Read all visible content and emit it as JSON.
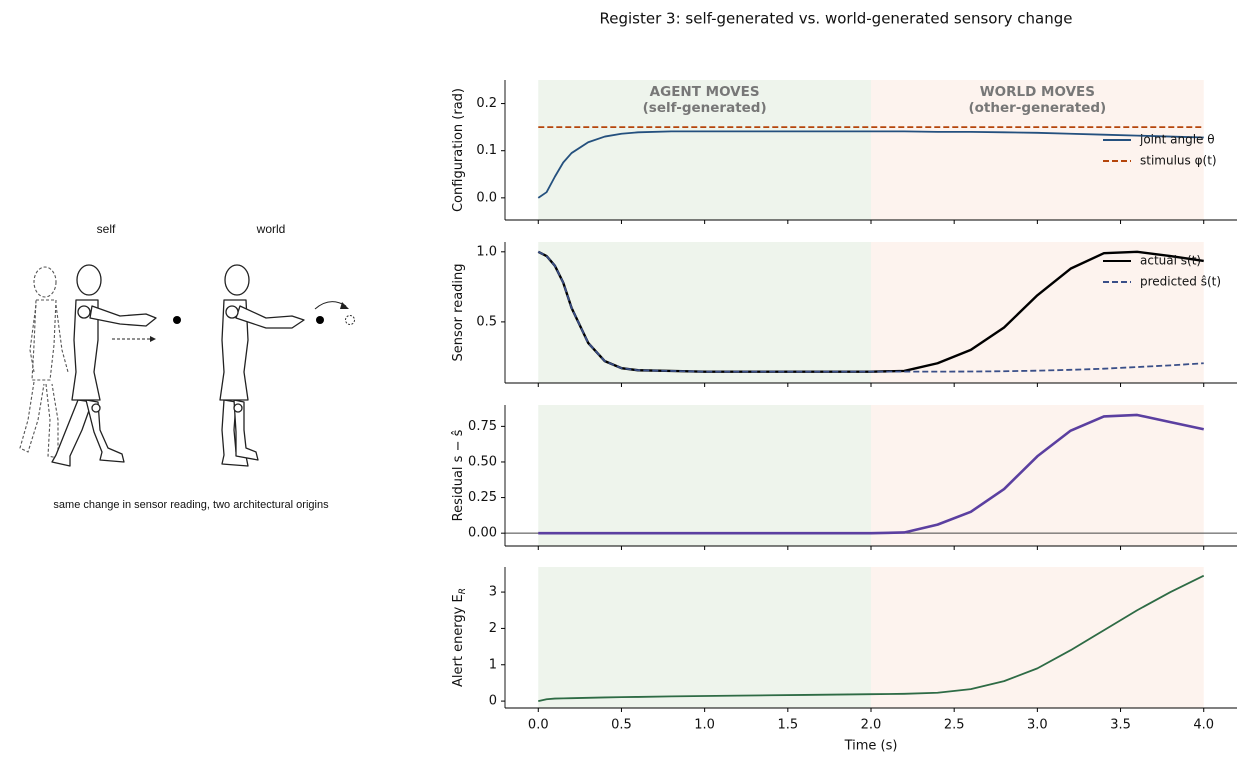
{
  "suptitle": "Register 3: self-generated vs. world-generated sensory change",
  "illustration": {
    "labels": [
      "self",
      "world"
    ],
    "caption": "same change in sensor reading, two architectural origins"
  },
  "chart_data": [
    {
      "type": "line",
      "ylabel": "Configuration (rad)",
      "legend": "center right",
      "x": [
        0,
        0.05,
        0.1,
        0.15,
        0.2,
        0.3,
        0.4,
        0.5,
        0.6,
        0.8,
        1.0,
        1.2,
        1.4,
        1.6,
        1.8,
        2.0,
        2.2,
        2.4,
        2.6,
        2.8,
        3.0,
        3.2,
        3.4,
        3.6,
        3.8,
        4.0
      ],
      "series": [
        {
          "name": "joint angle θ",
          "color": "#24507e",
          "dash": false,
          "values": [
            0,
            0.012,
            0.045,
            0.075,
            0.095,
            0.118,
            0.13,
            0.136,
            0.139,
            0.141,
            0.141,
            0.141,
            0.141,
            0.141,
            0.141,
            0.141,
            0.141,
            0.14,
            0.14,
            0.139,
            0.138,
            0.136,
            0.134,
            0.132,
            0.13,
            0.128
          ]
        },
        {
          "name": "stimulus φ(t)",
          "color": "#b5450b",
          "dash": true,
          "values": [
            0.15,
            0.15,
            0.15,
            0.15,
            0.15,
            0.15,
            0.15,
            0.15,
            0.15,
            0.15,
            0.15,
            0.15,
            0.15,
            0.15,
            0.15,
            0.15,
            0.15,
            0.15,
            0.15,
            0.15,
            0.15,
            0.15,
            0.15,
            0.15,
            0.15,
            0.15
          ]
        }
      ],
      "spans": [
        {
          "xmin": 0,
          "xmax": 2,
          "color": "#eef4ec",
          "label": [
            "AGENT MOVES",
            "(self-generated)"
          ]
        },
        {
          "xmin": 2,
          "xmax": 4,
          "color": "#fdf3ee",
          "label": [
            "WORLD MOVES",
            "(other-generated)"
          ]
        }
      ],
      "xlim": [
        -0.2,
        4.2
      ],
      "xticks": [
        0,
        0.5,
        1,
        1.5,
        2,
        2.5,
        3,
        3.5,
        4
      ],
      "ylim": [
        -0.047,
        0.25
      ],
      "yticks": [
        {
          "value": 0,
          "label": "0.0"
        },
        0.1,
        0.2
      ]
    },
    {
      "type": "line",
      "ylabel": "Sensor reading",
      "legend": "upper right",
      "x": [
        0,
        0.05,
        0.1,
        0.15,
        0.2,
        0.3,
        0.4,
        0.5,
        0.6,
        0.8,
        1.0,
        1.2,
        1.4,
        1.6,
        1.8,
        2.0,
        2.2,
        2.4,
        2.6,
        2.8,
        3.0,
        3.2,
        3.4,
        3.6,
        3.8,
        4.0
      ],
      "series": [
        {
          "name": "actual s(t)",
          "color": "#000000",
          "dash": false,
          "width": 2.4,
          "values": [
            1.0,
            0.97,
            0.9,
            0.78,
            0.6,
            0.35,
            0.22,
            0.17,
            0.155,
            0.15,
            0.145,
            0.145,
            0.145,
            0.145,
            0.145,
            0.145,
            0.15,
            0.205,
            0.3,
            0.46,
            0.69,
            0.88,
            0.99,
            1.0,
            0.97,
            0.935
          ]
        },
        {
          "name": "predicted ŝ(t)",
          "color": "#3a4f88",
          "dash": true,
          "values": [
            1.0,
            0.97,
            0.9,
            0.78,
            0.6,
            0.35,
            0.22,
            0.17,
            0.155,
            0.15,
            0.145,
            0.145,
            0.145,
            0.145,
            0.145,
            0.145,
            0.145,
            0.145,
            0.146,
            0.148,
            0.152,
            0.158,
            0.166,
            0.178,
            0.19,
            0.205
          ]
        }
      ],
      "spans": [
        {
          "xmin": 0,
          "xmax": 2,
          "color": "#eef4ec"
        },
        {
          "xmin": 2,
          "xmax": 4,
          "color": "#fdf3ee"
        }
      ],
      "xlim": [
        -0.2,
        4.2
      ],
      "xticks": [
        0,
        0.5,
        1,
        1.5,
        2,
        2.5,
        3,
        3.5,
        4
      ],
      "ylim": [
        0.064,
        1.07
      ],
      "yticks": [
        0.5,
        {
          "value": 1,
          "label": "1.0"
        }
      ]
    },
    {
      "type": "line",
      "ylabel": "Residual s − ŝ",
      "hline": 0,
      "x": [
        0,
        0.05,
        0.1,
        0.15,
        0.2,
        0.3,
        0.4,
        0.5,
        0.6,
        0.8,
        1.0,
        1.2,
        1.4,
        1.6,
        1.8,
        2.0,
        2.2,
        2.4,
        2.6,
        2.8,
        3.0,
        3.2,
        3.4,
        3.6,
        3.8,
        4.0
      ],
      "series": [
        {
          "name": null,
          "color": "#5b3fa0",
          "dash": false,
          "width": 2.6,
          "values": [
            0,
            0,
            0,
            0,
            0,
            0,
            0,
            0,
            0,
            0,
            0,
            0,
            0,
            0,
            0,
            0,
            0.005,
            0.06,
            0.15,
            0.31,
            0.54,
            0.72,
            0.82,
            0.83,
            0.78,
            0.73
          ]
        }
      ],
      "spans": [
        {
          "xmin": 0,
          "xmax": 2,
          "color": "#eef4ec"
        },
        {
          "xmin": 2,
          "xmax": 4,
          "color": "#fdf3ee"
        }
      ],
      "xlim": [
        -0.2,
        4.2
      ],
      "xticks": [
        0,
        0.5,
        1,
        1.5,
        2,
        2.5,
        3,
        3.5,
        4
      ],
      "ylim": [
        -0.09,
        0.9
      ],
      "yticks": [
        {
          "value": 0,
          "label": "0.00"
        },
        0.25,
        {
          "value": 0.5,
          "label": "0.50"
        },
        0.75
      ]
    },
    {
      "type": "line",
      "ylabel": "Alert energy E",
      "ylabel_subscript": "R",
      "xlabel": "Time (s)",
      "x": [
        0,
        0.05,
        0.1,
        0.15,
        0.2,
        0.3,
        0.4,
        0.5,
        0.6,
        0.8,
        1.0,
        1.2,
        1.4,
        1.6,
        1.8,
        2.0,
        2.2,
        2.4,
        2.6,
        2.8,
        3.0,
        3.2,
        3.4,
        3.6,
        3.8,
        4.0
      ],
      "series": [
        {
          "name": null,
          "color": "#2e6b45",
          "dash": false,
          "values": [
            0,
            0.05,
            0.07,
            0.075,
            0.08,
            0.09,
            0.1,
            0.11,
            0.115,
            0.13,
            0.14,
            0.15,
            0.16,
            0.17,
            0.18,
            0.19,
            0.2,
            0.23,
            0.33,
            0.55,
            0.9,
            1.4,
            1.95,
            2.5,
            3.0,
            3.45
          ]
        }
      ],
      "spans": [
        {
          "xmin": 0,
          "xmax": 2,
          "color": "#eef4ec"
        },
        {
          "xmin": 2,
          "xmax": 4,
          "color": "#fdf3ee"
        }
      ],
      "xlim": [
        -0.2,
        4.2
      ],
      "xticks": [
        {
          "value": 0,
          "label": "0.0"
        },
        0.5,
        {
          "value": 1,
          "label": "1.0"
        },
        1.5,
        {
          "value": 2,
          "label": "2.0"
        },
        2.5,
        {
          "value": 3,
          "label": "3.0"
        },
        3.5,
        {
          "value": 4,
          "label": "4.0"
        }
      ],
      "ylim": [
        -0.19,
        3.69
      ],
      "yticks": [
        0,
        1,
        2,
        3
      ]
    }
  ]
}
